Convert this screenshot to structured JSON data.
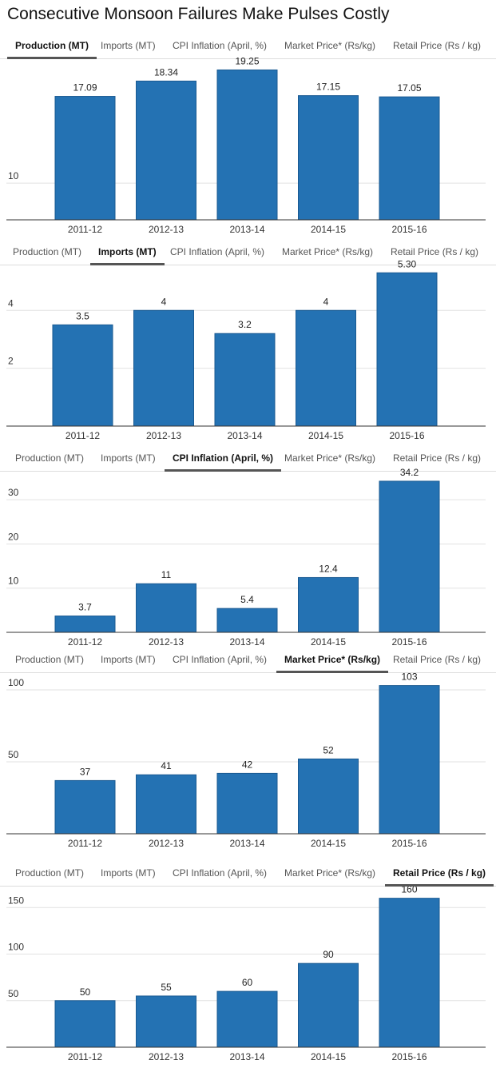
{
  "title": "Consecutive Monsoon Failures Make Pulses Costly",
  "colors": {
    "bar": "#2472b3",
    "bar_stroke": "#1a5a92",
    "grid": "#e2e2e2",
    "axis": "#333333",
    "active_tab_underline": "#555555"
  },
  "tab_labels": [
    "Production (MT)",
    "Imports (MT)",
    "CPI Inflation (April, %)",
    "Market Price* (Rs/kg)",
    "Retail Price (Rs / kg)"
  ],
  "chart_data": [
    {
      "type": "bar",
      "active_tab": 0,
      "categories": [
        "2011-12",
        "2012-13",
        "2013-14",
        "2014-15",
        "2015-16"
      ],
      "values": [
        17.09,
        18.34,
        19.25,
        17.15,
        17.05
      ],
      "value_labels": [
        "17.09",
        "18.34",
        "19.25",
        "17.15",
        "17.05"
      ],
      "yticks": [
        "10"
      ],
      "ylim": [
        7,
        20
      ],
      "grid": true
    },
    {
      "type": "bar",
      "active_tab": 1,
      "categories": [
        "2011-12",
        "2012-13",
        "2013-14",
        "2014-15",
        "2015-16"
      ],
      "values": [
        3.5,
        4,
        3.2,
        4,
        5.3
      ],
      "value_labels": [
        "3.5",
        "4",
        "3.2",
        "4",
        "5.30"
      ],
      "yticks": [
        "2",
        "4"
      ],
      "ylim": [
        0,
        5.5
      ],
      "grid": true
    },
    {
      "type": "bar",
      "active_tab": 2,
      "categories": [
        "2011-12",
        "2012-13",
        "2013-14",
        "2014-15",
        "2015-16"
      ],
      "values": [
        3.7,
        11,
        5.4,
        12.4,
        34.2
      ],
      "value_labels": [
        "3.7",
        "11",
        "5.4",
        "12.4",
        "34.2"
      ],
      "yticks": [
        "10",
        "20",
        "30"
      ],
      "ylim": [
        0,
        36
      ],
      "grid": true
    },
    {
      "type": "bar",
      "active_tab": 3,
      "categories": [
        "2011-12",
        "2012-13",
        "2013-14",
        "2014-15",
        "2015-16"
      ],
      "values": [
        37,
        41,
        42,
        52,
        103
      ],
      "value_labels": [
        "37",
        "41",
        "42",
        "52",
        "103"
      ],
      "yticks": [
        "50",
        "100"
      ],
      "ylim": [
        0,
        110
      ],
      "grid": true
    },
    {
      "type": "bar",
      "active_tab": 4,
      "categories": [
        "2011-12",
        "2012-13",
        "2013-14",
        "2014-15",
        "2015-16"
      ],
      "values": [
        50,
        55,
        60,
        90,
        160
      ],
      "value_labels": [
        "50",
        "55",
        "60",
        "90",
        "160"
      ],
      "yticks": [
        "50",
        "100",
        "150"
      ],
      "ylim": [
        0,
        170
      ],
      "grid": true
    }
  ]
}
